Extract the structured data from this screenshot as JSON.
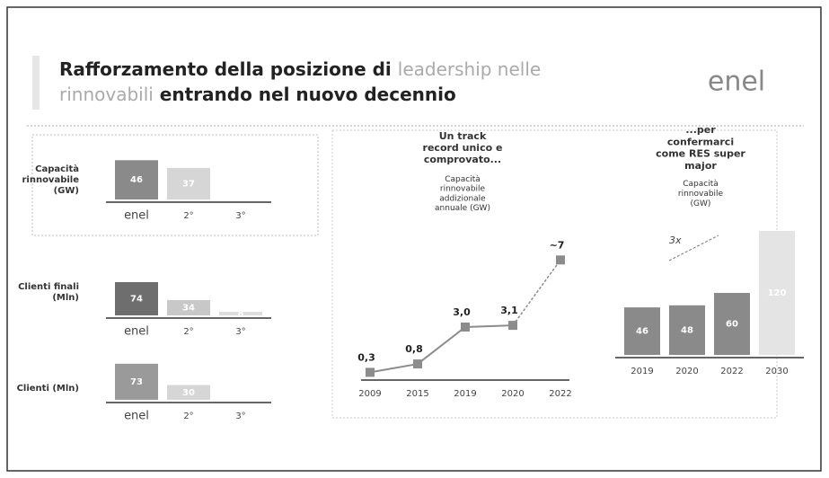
{
  "header": {
    "title_dark_1": "Rafforzamento della posizione di",
    "title_light_1": "leadership nelle",
    "title_light_2": "rinnovabili",
    "title_dark_2": "entrando nel nuovo decennio",
    "logo": "enel"
  },
  "chart_data": [
    {
      "type": "bar",
      "label": "Capacità rinnovabile (GW)",
      "categories": [
        "enel",
        "2°",
        "3°"
      ],
      "values": [
        46,
        37,
        null
      ],
      "value_labels": [
        "46",
        "37",
        null
      ],
      "colors": [
        "#8a8a8a",
        "#d6d6d6",
        "#e6e6e6"
      ]
    },
    {
      "type": "bar",
      "label": "Clienti finali (Mln)",
      "categories": [
        "enel",
        "2°",
        "3°"
      ],
      "values": [
        74,
        34,
        8
      ],
      "value_labels": [
        "74",
        "34",
        "8"
      ],
      "colors": [
        "#6e6e6e",
        "#c8c8c8",
        "#dedede"
      ]
    },
    {
      "type": "bar",
      "label": "Clienti (Mln)",
      "categories": [
        "enel",
        "2°",
        "3°"
      ],
      "values": [
        73,
        30,
        null
      ],
      "value_labels": [
        "73",
        "30",
        null
      ],
      "colors": [
        "#9a9a9a",
        "#d6d6d6",
        "#e6e6e6"
      ]
    },
    {
      "type": "line",
      "title": "Un track record unico e comprovato...",
      "subtitle": "Capacità rinnovabile addizionale annuale (GW)",
      "categories": [
        "2009",
        "2015",
        "2019",
        "2020",
        "2022"
      ],
      "values": [
        0.3,
        0.8,
        3.0,
        3.1,
        7
      ],
      "value_labels": [
        "0,3",
        "0,8",
        "3,0",
        "3,1",
        "~7"
      ],
      "color": "#8c8c8c",
      "ylim": [
        0,
        7.5
      ]
    },
    {
      "type": "bar",
      "title": "...per confermarci come RES super major",
      "subtitle": "Capacità rinnovabile (GW)",
      "categories": [
        "2019",
        "2020",
        "2022",
        "2030"
      ],
      "values": [
        46,
        48,
        60,
        120
      ],
      "value_labels": [
        "46",
        "48",
        "60",
        "120"
      ],
      "colors": [
        "#8a8a8a",
        "#8a8a8a",
        "#8a8a8a",
        "#e4e4e4"
      ],
      "annotation": "3x"
    }
  ]
}
